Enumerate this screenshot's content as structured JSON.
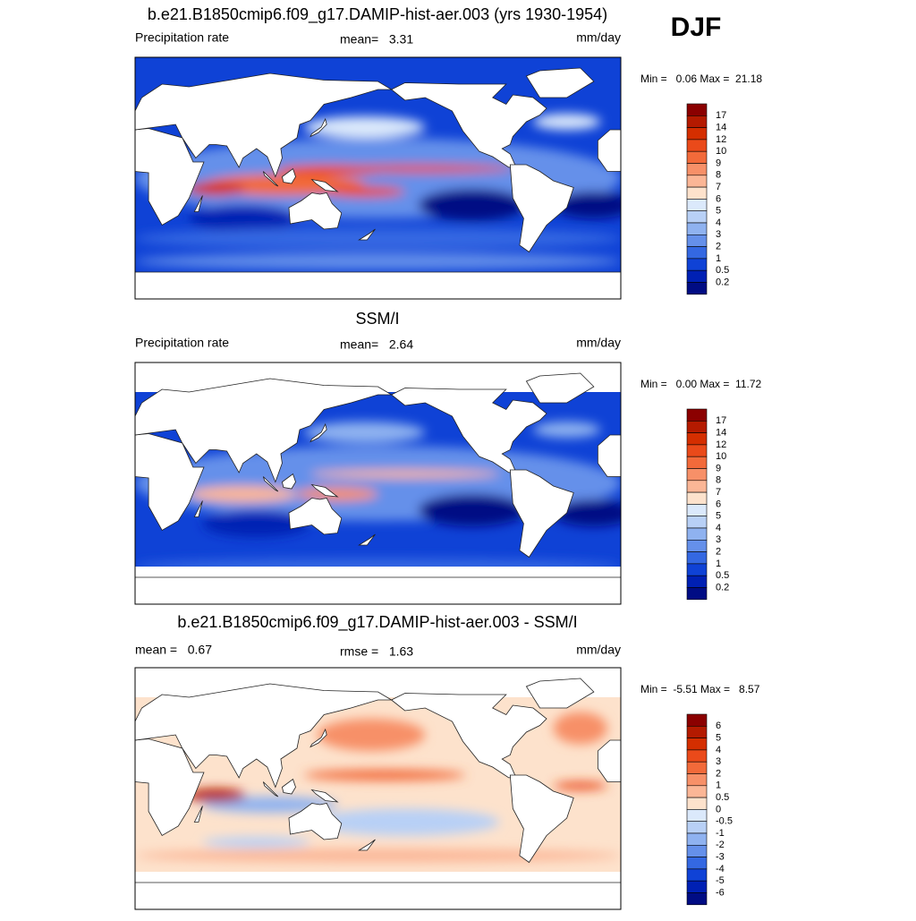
{
  "header": {
    "season": "DJF"
  },
  "panels": [
    {
      "title": "b.e21.B1850cmip6.f09_g17.DAMIP-hist-aer.003 (yrs 1930-1954)",
      "left_label": "Precipitation rate",
      "center_label": "mean=   3.31",
      "right_label": "mm/day",
      "range_label": "Min =   0.06 Max =  21.18",
      "colorbar": {
        "labels": [
          17,
          14,
          12,
          10,
          9,
          8,
          7,
          6,
          5,
          4,
          3,
          2,
          1,
          0.5,
          0.2
        ],
        "colors": [
          "#8b0000",
          "#b41a00",
          "#d42e00",
          "#ea4a1a",
          "#f26a3a",
          "#f79068",
          "#fbb696",
          "#fde2cc",
          "#dbe9fb",
          "#b8d0f6",
          "#8fb2f0",
          "#6590ea",
          "#3468e2",
          "#0f42d6",
          "#0020b4",
          "#000c84"
        ]
      }
    },
    {
      "title": "SSM/I",
      "left_label": "Precipitation rate",
      "center_label": "mean=   2.64",
      "right_label": "mm/day",
      "range_label": "Min =   0.00 Max =  11.72",
      "colorbar": {
        "labels": [
          17,
          14,
          12,
          10,
          9,
          8,
          7,
          6,
          5,
          4,
          3,
          2,
          1,
          0.5,
          0.2
        ],
        "colors": [
          "#8b0000",
          "#b41a00",
          "#d42e00",
          "#ea4a1a",
          "#f26a3a",
          "#f79068",
          "#fbb696",
          "#fde2cc",
          "#dbe9fb",
          "#b8d0f6",
          "#8fb2f0",
          "#6590ea",
          "#3468e2",
          "#0f42d6",
          "#0020b4",
          "#000c84"
        ]
      }
    },
    {
      "title": "b.e21.B1850cmip6.f09_g17.DAMIP-hist-aer.003 - SSM/I",
      "left_label": "mean =   0.67",
      "center_label": "rmse =   1.63",
      "right_label": "mm/day",
      "range_label": "Min =  -5.51 Max =   8.57",
      "colorbar": {
        "labels": [
          6,
          5,
          4,
          3,
          2,
          1,
          0.5,
          0,
          -0.5,
          -1,
          -2,
          -3,
          -4,
          -5,
          -6
        ],
        "colors": [
          "#8b0000",
          "#b41a00",
          "#d42e00",
          "#ea4a1a",
          "#f26a3a",
          "#f79068",
          "#fbb696",
          "#fde2cc",
          "#dbe9fb",
          "#b8d0f6",
          "#8fb2f0",
          "#6590ea",
          "#3468e2",
          "#0f42d6",
          "#0020b4",
          "#000c84"
        ]
      }
    }
  ]
}
